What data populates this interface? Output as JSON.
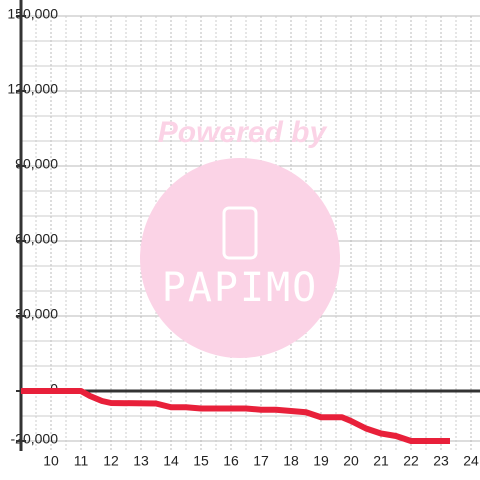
{
  "chart_data": {
    "type": "line",
    "watermark": "Powered by",
    "logo": "PAPIMO",
    "x": [
      9,
      10,
      11,
      11.3,
      11.7,
      12,
      13.5,
      14,
      14.5,
      15,
      16.5,
      17,
      17.5,
      18,
      18.5,
      19,
      19.7,
      20,
      20.5,
      21,
      21.5,
      22,
      23.3
    ],
    "series": [
      {
        "color": "#e8203a",
        "values": [
          0,
          0,
          0,
          -2000,
          -4000,
          -4800,
          -5000,
          -6500,
          -6500,
          -7000,
          -7000,
          -7500,
          -7500,
          -8000,
          -8500,
          -10500,
          -10500,
          -12000,
          -15000,
          -17000,
          -18000,
          -20000,
          -20000
        ]
      }
    ],
    "xlim": [
      9,
      24.3
    ],
    "ylim": [
      -24000,
      150000
    ],
    "xticks": [
      10,
      11,
      12,
      13,
      14,
      15,
      16,
      17,
      18,
      19,
      20,
      21,
      22,
      23,
      24
    ],
    "yticks": [
      {
        "value": -20000,
        "label": "-20,000"
      },
      0,
      {
        "value": 30000,
        "label": "30,000"
      },
      {
        "value": 60000,
        "label": "60,000"
      },
      {
        "value": 90000,
        "label": "90,000"
      },
      {
        "value": 120000,
        "label": "120,000"
      },
      {
        "value": 150000,
        "label": "150,000"
      }
    ],
    "xminorticks": [
      9.5,
      10.5,
      11.5,
      12.5,
      13.5,
      14.5,
      15.5,
      16.5,
      17.5,
      18.5,
      19.5,
      20.5,
      21.5,
      22.5,
      23.5
    ],
    "yminorticks": [
      -10000,
      10000,
      20000,
      40000,
      50000,
      70000,
      80000,
      100000,
      110000,
      130000,
      140000
    ],
    "grid": true
  }
}
